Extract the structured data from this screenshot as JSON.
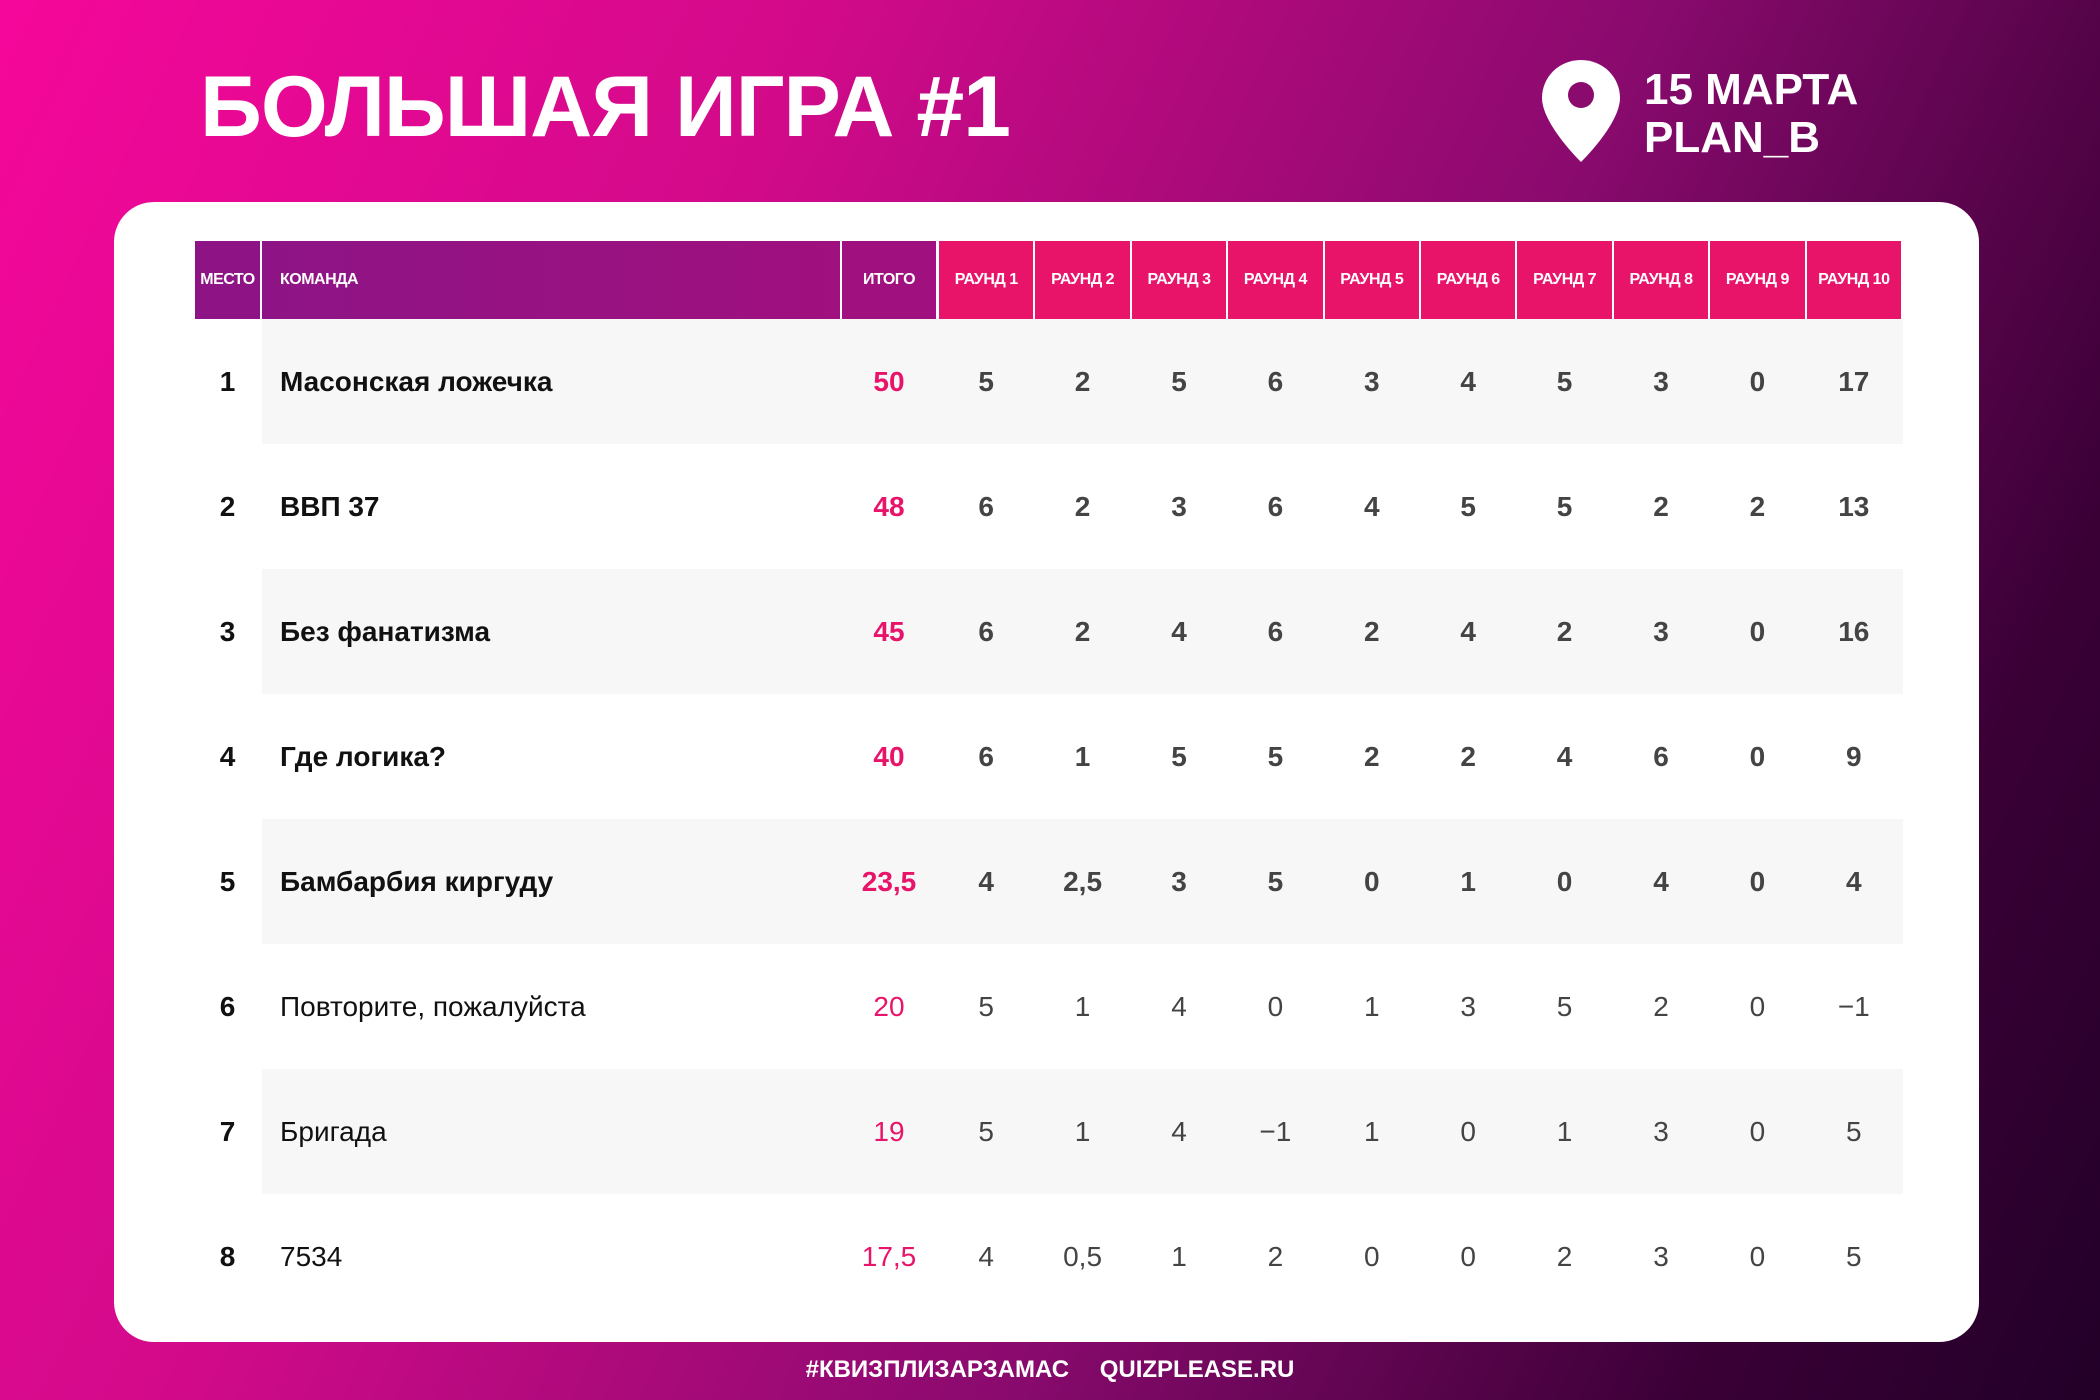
{
  "header": {
    "title": "БОЛЬШАЯ ИГРА #1",
    "date": "15 МАРТА",
    "venue": "PLAN_B"
  },
  "table": {
    "columns": [
      "МЕСТО",
      "КОМАНДА",
      "ИТОГО",
      "РАУНД 1",
      "РАУНД 2",
      "РАУНД 3",
      "РАУНД 4",
      "РАУНД 5",
      "РАУНД 6",
      "РАУНД 7",
      "РАУНД 8",
      "РАУНД 9",
      "РАУНД 10"
    ],
    "rows": [
      [
        "1",
        "Масонская ложечка",
        "50",
        "5",
        "2",
        "5",
        "6",
        "3",
        "4",
        "5",
        "3",
        "0",
        "17"
      ],
      [
        "2",
        "ВВП 37",
        "48",
        "6",
        "2",
        "3",
        "6",
        "4",
        "5",
        "5",
        "2",
        "2",
        "13"
      ],
      [
        "3",
        "Без фанатизма",
        "45",
        "6",
        "2",
        "4",
        "6",
        "2",
        "4",
        "2",
        "3",
        "0",
        "16"
      ],
      [
        "4",
        "Где логика?",
        "40",
        "6",
        "1",
        "5",
        "5",
        "2",
        "2",
        "4",
        "6",
        "0",
        "9"
      ],
      [
        "5",
        "Бамбарбия киргуду",
        "23,5",
        "4",
        "2,5",
        "3",
        "5",
        "0",
        "1",
        "0",
        "4",
        "0",
        "4"
      ],
      [
        "6",
        "Повторите, пожалуйста",
        "20",
        "5",
        "1",
        "4",
        "0",
        "1",
        "3",
        "5",
        "2",
        "0",
        "−1"
      ],
      [
        "7",
        "Бригада",
        "19",
        "5",
        "1",
        "4",
        "−1",
        "1",
        "0",
        "1",
        "3",
        "0",
        "5"
      ],
      [
        "8",
        "7534",
        "17,5",
        "4",
        "0,5",
        "1",
        "2",
        "0",
        "0",
        "2",
        "3",
        "0",
        "5"
      ]
    ]
  },
  "footer": {
    "hashtag": "#КВИЗПЛИЗАРЗАМАС",
    "site": "QUIZPLEASE.RU"
  }
}
